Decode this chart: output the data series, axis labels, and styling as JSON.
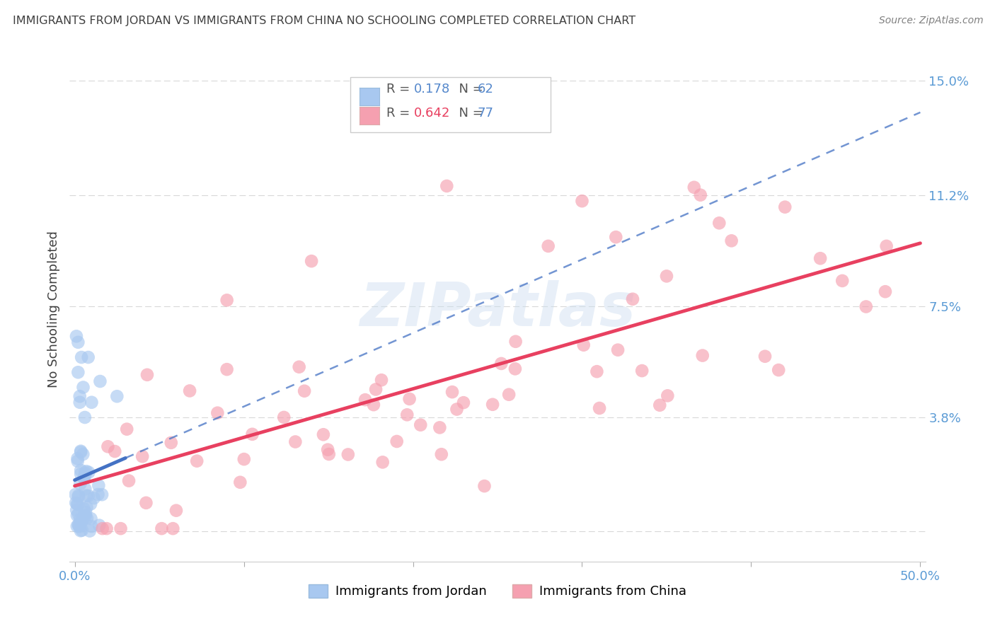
{
  "title": "IMMIGRANTS FROM JORDAN VS IMMIGRANTS FROM CHINA NO SCHOOLING COMPLETED CORRELATION CHART",
  "source": "Source: ZipAtlas.com",
  "ylabel": "No Schooling Completed",
  "xlim": [
    -0.003,
    0.503
  ],
  "ylim": [
    -0.01,
    0.158
  ],
  "xticks": [
    0.0,
    0.1,
    0.2,
    0.3,
    0.4,
    0.5
  ],
  "xticklabels": [
    "0.0%",
    "",
    "",
    "",
    "",
    "50.0%"
  ],
  "yticks_right": [
    0.0,
    0.038,
    0.075,
    0.112,
    0.15
  ],
  "yticklabels_right": [
    "",
    "3.8%",
    "7.5%",
    "11.2%",
    "15.0%"
  ],
  "legend_jordan_R": "0.178",
  "legend_jordan_N": "62",
  "legend_china_R": "0.642",
  "legend_china_N": "77",
  "color_jordan": "#a8c8f0",
  "color_china": "#f5a0b0",
  "color_jordan_line": "#4472c4",
  "color_china_line": "#e84060",
  "background_color": "#ffffff",
  "watermark": "ZIPatlas",
  "tick_color": "#5b9bd5",
  "grid_color": "#d8d8d8",
  "title_color": "#404040",
  "source_color": "#808080",
  "ylabel_color": "#404040"
}
